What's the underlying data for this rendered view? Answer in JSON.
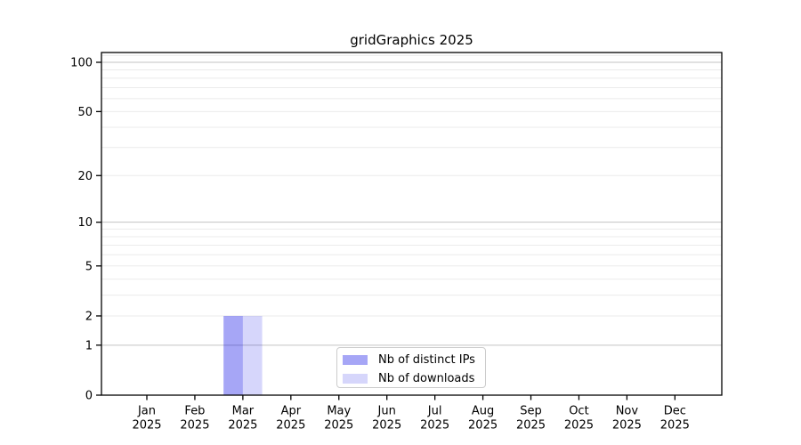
{
  "chart_data": {
    "type": "bar",
    "title": "gridGraphics 2025",
    "categories": [
      "Jan 2025",
      "Feb 2025",
      "Mar 2025",
      "Apr 2025",
      "May 2025",
      "Jun 2025",
      "Jul 2025",
      "Aug 2025",
      "Sep 2025",
      "Oct 2025",
      "Nov 2025",
      "Dec 2025"
    ],
    "series": [
      {
        "name": "Nb of distinct IPs",
        "color": "rgba(0,0,230,0.35)",
        "values": [
          0,
          0,
          2,
          0,
          0,
          0,
          0,
          0,
          0,
          0,
          0,
          0
        ]
      },
      {
        "name": "Nb of downloads",
        "color": "rgba(0,0,230,0.16)",
        "values": [
          0,
          0,
          2,
          0,
          0,
          0,
          0,
          0,
          0,
          0,
          0,
          0
        ]
      }
    ],
    "xlabel": "",
    "ylabel": "",
    "y_axis": {
      "scale": "log10(1+y)",
      "ylim": [
        0,
        115
      ],
      "tick_values": [
        0,
        1,
        2,
        5,
        10,
        20,
        50,
        100
      ],
      "major_grid_values": [
        1,
        10,
        100
      ],
      "minor_grid_values": [
        2,
        3,
        4,
        5,
        6,
        7,
        8,
        9,
        20,
        30,
        40,
        50,
        60,
        70,
        80,
        90,
        110
      ]
    },
    "grid": "horizontal",
    "legend_position": "lower center"
  },
  "colors": {
    "background": "#ffffff",
    "axis": "#000000",
    "text": "#000000",
    "grid_major": "#c3c3c3",
    "grid_minor": "#ebebeb",
    "legend_border": "#cccccc",
    "bar_distinct_ips": "rgba(0,0,230,0.35)",
    "bar_downloads": "rgba(0,0,230,0.16)"
  }
}
